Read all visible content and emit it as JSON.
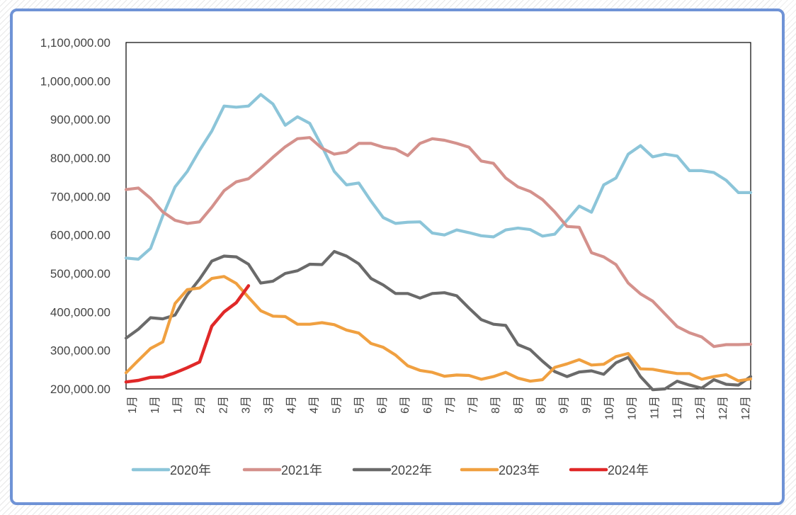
{
  "chart_data": {
    "type": "line",
    "title": "",
    "xlabel": "",
    "ylabel": "",
    "ylim": [
      200000,
      1100000
    ],
    "y_ticks": [
      200000,
      300000,
      400000,
      500000,
      600000,
      700000,
      800000,
      900000,
      1000000,
      1100000
    ],
    "y_tick_labels": [
      "200,000.00",
      "300,000.00",
      "400,000.00",
      "500,000.00",
      "600,000.00",
      "700,000.00",
      "800,000.00",
      "900,000.00",
      "1,000,000.00",
      "1,100,000.00"
    ],
    "x_tick_labels": [
      "1月",
      "1月",
      "1月",
      "2月",
      "2月",
      "3月",
      "3月",
      "4月",
      "4月",
      "5月",
      "5月",
      "6月",
      "6月",
      "6月",
      "7月",
      "7月",
      "8月",
      "8月",
      "8月",
      "9月",
      "9月",
      "10月",
      "10月",
      "11月",
      "11月",
      "12月",
      "12月",
      "12月"
    ],
    "points_per_series": 52,
    "grid": false,
    "legend": "bottom",
    "series": [
      {
        "name": "2020年",
        "color": "#8cc5d9",
        "values": [
          540000,
          537000,
          565000,
          650000,
          725000,
          765000,
          820000,
          870000,
          935000,
          932000,
          935000,
          965000,
          940000,
          885000,
          907000,
          890000,
          830000,
          765000,
          730000,
          735000,
          688000,
          645000,
          630000,
          633000,
          634000,
          605000,
          600000,
          613000,
          606000,
          598000,
          595000,
          613000,
          618000,
          614000,
          597000,
          602000,
          638000,
          675000,
          659000,
          730000,
          748000,
          810000,
          832000,
          803000,
          810000,
          805000,
          767000,
          767000,
          762000,
          742000,
          710000,
          710000
        ]
      },
      {
        "name": "2021年",
        "color": "#d4918c",
        "values": [
          718000,
          722000,
          695000,
          660000,
          638000,
          630000,
          634000,
          672000,
          715000,
          738000,
          746000,
          773000,
          802000,
          829000,
          850000,
          853000,
          825000,
          810000,
          815000,
          838000,
          838000,
          828000,
          823000,
          806000,
          838000,
          850000,
          846000,
          838000,
          828000,
          792000,
          786000,
          748000,
          725000,
          713000,
          692000,
          660000,
          622000,
          620000,
          554000,
          543000,
          523000,
          475000,
          447000,
          428000,
          395000,
          362000,
          346000,
          335000,
          310000,
          315000,
          315000,
          316000
        ]
      },
      {
        "name": "2022年",
        "color": "#6a6a6a",
        "values": [
          332000,
          355000,
          385000,
          382000,
          392000,
          445000,
          485000,
          532000,
          545000,
          543000,
          524000,
          475000,
          480000,
          500000,
          507000,
          524000,
          523000,
          557000,
          545000,
          525000,
          487000,
          470000,
          448000,
          448000,
          436000,
          448000,
          450000,
          442000,
          410000,
          380000,
          368000,
          365000,
          315000,
          302000,
          272000,
          245000,
          232000,
          244000,
          247000,
          238000,
          268000,
          282000,
          232000,
          198000,
          200000,
          220000,
          210000,
          202000,
          224000,
          212000,
          210000,
          232000
        ]
      },
      {
        "name": "2023年",
        "color": "#f0a040",
        "values": [
          242000,
          274000,
          305000,
          322000,
          422000,
          458000,
          462000,
          487000,
          492000,
          474000,
          438000,
          403000,
          389000,
          388000,
          368000,
          368000,
          372000,
          367000,
          353000,
          345000,
          318000,
          308000,
          288000,
          260000,
          248000,
          243000,
          233000,
          236000,
          235000,
          225000,
          232000,
          243000,
          228000,
          220000,
          224000,
          256000,
          265000,
          276000,
          262000,
          264000,
          284000,
          292000,
          252000,
          251000,
          245000,
          240000,
          240000,
          225000,
          232000,
          237000,
          221000,
          226000
        ]
      },
      {
        "name": "2024年",
        "color": "#e02828",
        "values": [
          218000,
          222000,
          230000,
          231000,
          242000,
          255000,
          270000,
          363000,
          400000,
          424000,
          468000
        ]
      }
    ]
  }
}
